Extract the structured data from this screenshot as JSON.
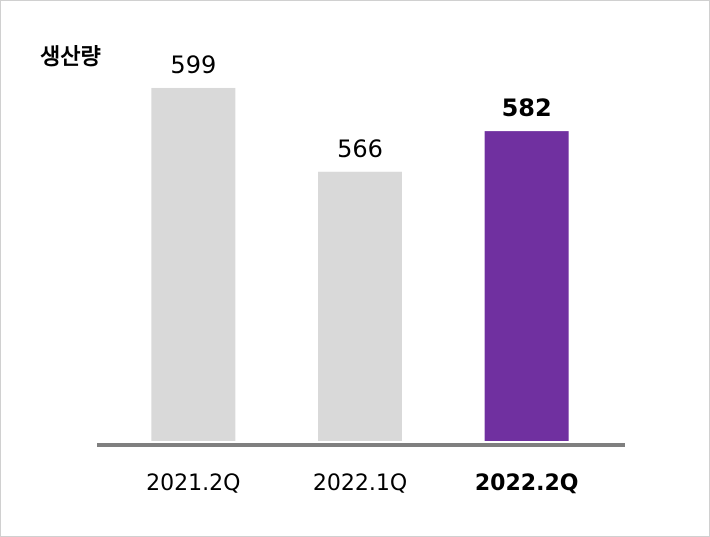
{
  "chart_data": {
    "type": "bar",
    "title": "생산량",
    "categories": [
      "2021.2Q",
      "2022.1Q",
      "2022.2Q"
    ],
    "values": [
      599,
      566,
      582
    ],
    "colors": [
      "#d9d9d9",
      "#d9d9d9",
      "#7030a0"
    ],
    "highlight": 2,
    "ylim": [
      460,
      610
    ]
  }
}
